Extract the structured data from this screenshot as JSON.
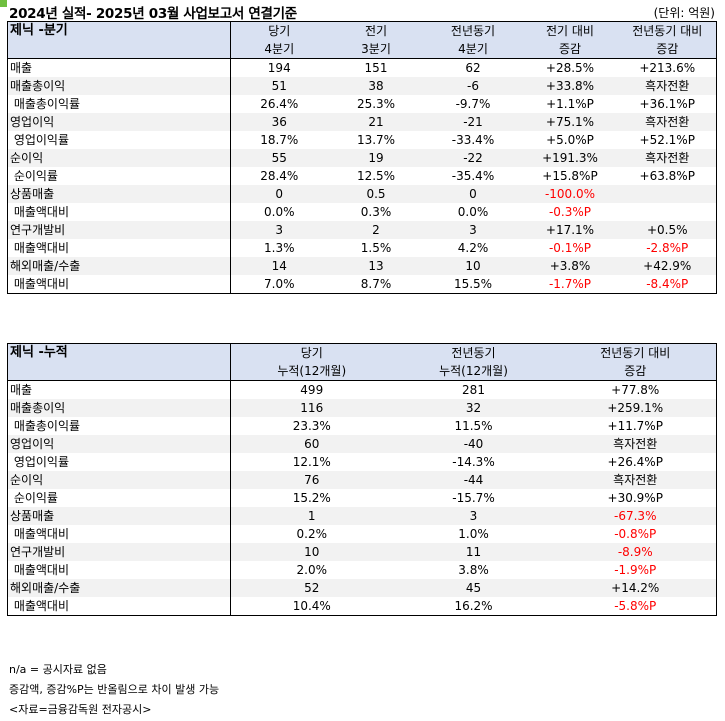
{
  "title": "2024년 실적- 2025년 03월 사업보고서 연결기준",
  "unit": "(단위: 억원)",
  "quarterly": {
    "name": "제닉 -분기",
    "headers": [
      [
        "당기",
        "4분기"
      ],
      [
        "전기",
        "3분기"
      ],
      [
        "전년동기",
        "4분기"
      ],
      [
        "전기 대비",
        "증감"
      ],
      [
        "전년동기 대비",
        "증감"
      ]
    ],
    "rows": [
      {
        "label": "매출",
        "values": [
          "194",
          "151",
          "62",
          "+28.5%",
          "+213.6%"
        ],
        "shade": false,
        "red": [
          false,
          false,
          false,
          false,
          false
        ]
      },
      {
        "label": "매출총이익",
        "values": [
          "51",
          "38",
          "-6",
          "+33.8%",
          "흑자전환"
        ],
        "shade": true,
        "red": [
          false,
          false,
          false,
          false,
          false
        ]
      },
      {
        "label": " 매출총이익률",
        "values": [
          "26.4%",
          "25.3%",
          "-9.7%",
          "+1.1%P",
          "+36.1%P"
        ],
        "shade": false,
        "red": [
          false,
          false,
          false,
          false,
          false
        ]
      },
      {
        "label": "영업이익",
        "values": [
          "36",
          "21",
          "-21",
          "+75.1%",
          "흑자전환"
        ],
        "shade": true,
        "red": [
          false,
          false,
          false,
          false,
          false
        ]
      },
      {
        "label": " 영업이익률",
        "values": [
          "18.7%",
          "13.7%",
          "-33.4%",
          "+5.0%P",
          "+52.1%P"
        ],
        "shade": false,
        "red": [
          false,
          false,
          false,
          false,
          false
        ]
      },
      {
        "label": "순이익",
        "values": [
          "55",
          "19",
          "-22",
          "+191.3%",
          "흑자전환"
        ],
        "shade": true,
        "red": [
          false,
          false,
          false,
          false,
          false
        ]
      },
      {
        "label": " 순이익률",
        "values": [
          "28.4%",
          "12.5%",
          "-35.4%",
          "+15.8%P",
          "+63.8%P"
        ],
        "shade": false,
        "red": [
          false,
          false,
          false,
          false,
          false
        ]
      },
      {
        "label": "상품매출",
        "values": [
          "0",
          "0.5",
          "0",
          "-100.0%",
          ""
        ],
        "shade": true,
        "red": [
          false,
          false,
          false,
          true,
          false
        ]
      },
      {
        "label": " 매출액대비",
        "values": [
          "0.0%",
          "0.3%",
          "0.0%",
          "-0.3%P",
          ""
        ],
        "shade": false,
        "red": [
          false,
          false,
          false,
          true,
          false
        ]
      },
      {
        "label": "연구개발비",
        "values": [
          "3",
          "2",
          "3",
          "+17.1%",
          "+0.5%"
        ],
        "shade": true,
        "red": [
          false,
          false,
          false,
          false,
          false
        ]
      },
      {
        "label": " 매출액대비",
        "values": [
          "1.3%",
          "1.5%",
          "4.2%",
          "-0.1%P",
          "-2.8%P"
        ],
        "shade": false,
        "red": [
          false,
          false,
          false,
          true,
          true
        ]
      },
      {
        "label": "해외매출/수출",
        "values": [
          "14",
          "13",
          "10",
          "+3.8%",
          "+42.9%"
        ],
        "shade": true,
        "red": [
          false,
          false,
          false,
          false,
          false
        ]
      },
      {
        "label": " 매출액대비",
        "values": [
          "7.0%",
          "8.7%",
          "15.5%",
          "-1.7%P",
          "-8.4%P"
        ],
        "shade": false,
        "red": [
          false,
          false,
          false,
          true,
          true
        ]
      }
    ]
  },
  "cumulative": {
    "name": "제닉 -누적",
    "headers": [
      [
        "당기",
        "누적(12개월)"
      ],
      [
        "전년동기",
        "누적(12개월)"
      ],
      [
        "전년동기 대비",
        "증감"
      ]
    ],
    "rows": [
      {
        "label": "매출",
        "values": [
          "499",
          "281",
          "+77.8%"
        ],
        "shade": false,
        "red": [
          false,
          false,
          false
        ]
      },
      {
        "label": "매출총이익",
        "values": [
          "116",
          "32",
          "+259.1%"
        ],
        "shade": true,
        "red": [
          false,
          false,
          false
        ]
      },
      {
        "label": " 매출총이익률",
        "values": [
          "23.3%",
          "11.5%",
          "+11.7%P"
        ],
        "shade": false,
        "red": [
          false,
          false,
          false
        ]
      },
      {
        "label": "영업이익",
        "values": [
          "60",
          "-40",
          "흑자전환"
        ],
        "shade": true,
        "red": [
          false,
          false,
          false
        ]
      },
      {
        "label": " 영업이익률",
        "values": [
          "12.1%",
          "-14.3%",
          "+26.4%P"
        ],
        "shade": false,
        "red": [
          false,
          false,
          false
        ]
      },
      {
        "label": "순이익",
        "values": [
          "76",
          "-44",
          "흑자전환"
        ],
        "shade": true,
        "red": [
          false,
          false,
          false
        ]
      },
      {
        "label": " 순이익률",
        "values": [
          "15.2%",
          "-15.7%",
          "+30.9%P"
        ],
        "shade": false,
        "red": [
          false,
          false,
          false
        ]
      },
      {
        "label": "상품매출",
        "values": [
          "1",
          "3",
          "-67.3%"
        ],
        "shade": true,
        "red": [
          false,
          false,
          true
        ]
      },
      {
        "label": " 매출액대비",
        "values": [
          "0.2%",
          "1.0%",
          "-0.8%P"
        ],
        "shade": false,
        "red": [
          false,
          false,
          true
        ]
      },
      {
        "label": "연구개발비",
        "values": [
          "10",
          "11",
          "-8.9%"
        ],
        "shade": true,
        "red": [
          false,
          false,
          true
        ]
      },
      {
        "label": " 매출액대비",
        "values": [
          "2.0%",
          "3.8%",
          "-1.9%P"
        ],
        "shade": false,
        "red": [
          false,
          false,
          true
        ]
      },
      {
        "label": "해외매출/수출",
        "values": [
          "52",
          "45",
          "+14.2%"
        ],
        "shade": true,
        "red": [
          false,
          false,
          false
        ]
      },
      {
        "label": " 매출액대비",
        "values": [
          "10.4%",
          "16.2%",
          "-5.8%P"
        ],
        "shade": false,
        "red": [
          false,
          false,
          true
        ]
      }
    ]
  },
  "footnotes": [
    "n/a = 공시자료 없음",
    "증감액, 증감%P는 반올림으로 차이 발생 가능",
    "<자료=금융감독원 전자공시>"
  ]
}
